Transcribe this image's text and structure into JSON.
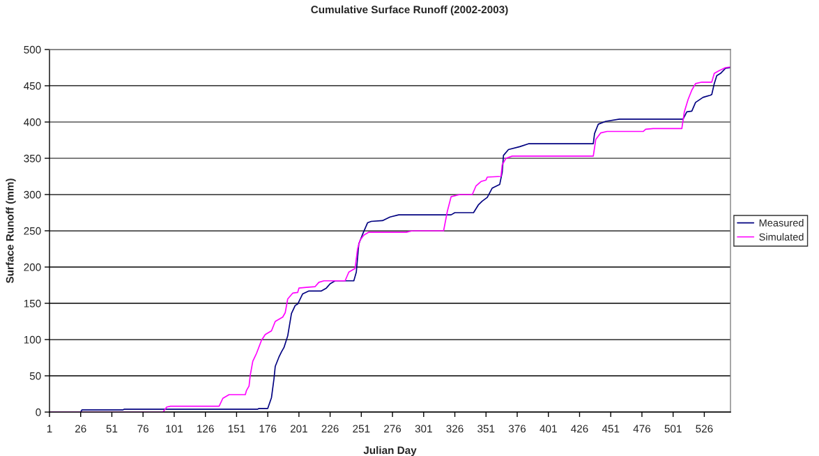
{
  "chart_data": {
    "type": "line",
    "title": "Cumulative Surface Runoff (2002-2003)",
    "xlabel": "Julian Day",
    "ylabel": "Surface Runoff (mm)",
    "xlim": [
      1,
      547
    ],
    "xticks": [
      1,
      26,
      51,
      76,
      101,
      126,
      151,
      176,
      201,
      226,
      251,
      276,
      301,
      326,
      351,
      376,
      401,
      426,
      451,
      476,
      501,
      526
    ],
    "ylim": [
      0,
      500
    ],
    "yticks": [
      0,
      50,
      100,
      150,
      200,
      250,
      300,
      350,
      400,
      450,
      500
    ],
    "grid": "y",
    "legend": "right",
    "series": [
      {
        "name": "Measured",
        "color": "#000080",
        "x": [
          1,
          26,
          27,
          60,
          61,
          168,
          169,
          176,
          179,
          181,
          182,
          185,
          187,
          189,
          192,
          195,
          198,
          200,
          204,
          209,
          219,
          223,
          226,
          230,
          245,
          247,
          249,
          252,
          256,
          259,
          268,
          274,
          281,
          323,
          326,
          341,
          345,
          348,
          352,
          356,
          362,
          364,
          365,
          369,
          378,
          385,
          437,
          438,
          441,
          447,
          458,
          509,
          512,
          516,
          519,
          525,
          531,
          532,
          534,
          536,
          539,
          543,
          547
        ],
        "values": [
          0,
          0,
          3,
          3,
          4,
          4,
          5,
          5,
          20,
          46,
          63,
          76,
          83,
          89,
          105,
          136,
          147,
          149,
          163,
          167,
          167,
          171,
          177,
          181,
          181,
          193,
          232,
          245,
          261,
          263,
          264,
          269,
          272,
          272,
          275,
          275,
          286,
          291,
          296,
          309,
          314,
          331,
          354,
          362,
          366,
          370,
          370,
          384,
          397,
          401,
          404,
          404,
          414,
          415,
          427,
          434,
          437,
          438,
          453,
          464,
          467,
          474,
          475
        ]
      },
      {
        "name": "Simulated",
        "color": "#ff00ff",
        "x": [
          1,
          92,
          95,
          98,
          137,
          140,
          145,
          158,
          159,
          161,
          162,
          164,
          167,
          171,
          174,
          179,
          182,
          188,
          190,
          192,
          196,
          200,
          201,
          207,
          214,
          217,
          221,
          238,
          241,
          246,
          248,
          250,
          253,
          257,
          287,
          292,
          317,
          320,
          323,
          330,
          340,
          343,
          347,
          351,
          352,
          363,
          364,
          367,
          372,
          437,
          439,
          443,
          448,
          477,
          479,
          485,
          508,
          510,
          513,
          516,
          519,
          524,
          532,
          534,
          538,
          543,
          547
        ],
        "values": [
          0,
          0,
          7,
          8,
          8,
          19,
          24,
          24,
          30,
          36,
          51,
          70,
          81,
          99,
          107,
          112,
          125,
          131,
          137,
          156,
          164,
          165,
          171,
          172,
          173,
          179,
          181,
          181,
          193,
          198,
          225,
          237,
          244,
          248,
          248,
          250,
          250,
          277,
          297,
          300,
          300,
          312,
          318,
          320,
          324,
          325,
          341,
          350,
          353,
          353,
          376,
          385,
          387,
          387,
          390,
          391,
          391,
          414,
          431,
          444,
          453,
          455,
          455,
          467,
          471,
          475,
          476
        ]
      }
    ]
  }
}
